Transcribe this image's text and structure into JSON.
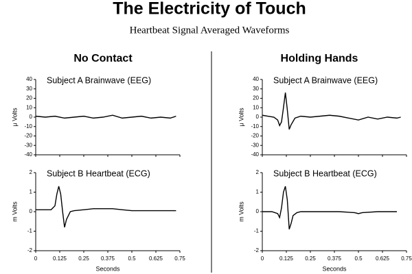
{
  "title": "The Electricity of Touch",
  "subtitle": "Heartbeat Signal Averaged Waveforms",
  "column_titles": [
    "No Contact",
    "Holding Hands"
  ],
  "chart_data": [
    {
      "type": "line",
      "title": "Subject A Brainwave (EEG)",
      "ylabel": "μ Volts",
      "xlim": [
        0,
        0.75
      ],
      "xticks": [
        0,
        0.125,
        0.25,
        0.375,
        0.5,
        0.625,
        0.75
      ],
      "ylim": [
        -40,
        40
      ],
      "yticks": [
        -40,
        -30,
        -20,
        -10,
        0,
        10,
        20,
        30,
        40
      ],
      "x": [
        0,
        0.05,
        0.1,
        0.15,
        0.2,
        0.25,
        0.3,
        0.35,
        0.4,
        0.45,
        0.5,
        0.55,
        0.6,
        0.65,
        0.7,
        0.73
      ],
      "series": [
        {
          "color": "#000000",
          "values": [
            1,
            0,
            1,
            -1,
            0,
            1,
            -1,
            0,
            2,
            -1,
            0,
            1,
            -1,
            0,
            -1,
            1
          ]
        }
      ]
    },
    {
      "type": "line",
      "title": "Subject B  Heartbeat (ECG)",
      "ylabel": "m Volts",
      "xlabel": "Seconds",
      "xlim": [
        0,
        0.75
      ],
      "xticks": [
        0,
        0.125,
        0.25,
        0.375,
        0.5,
        0.625,
        0.75
      ],
      "ylim": [
        -2,
        2
      ],
      "yticks": [
        -2,
        -1,
        0,
        1,
        2
      ],
      "x": [
        0,
        0.05,
        0.08,
        0.1,
        0.11,
        0.12,
        0.13,
        0.14,
        0.15,
        0.16,
        0.18,
        0.2,
        0.25,
        0.3,
        0.35,
        0.4,
        0.45,
        0.5,
        0.6,
        0.7,
        0.73
      ],
      "series": [
        {
          "color": "#000000",
          "values": [
            0.1,
            0.1,
            0.1,
            0.3,
            0.9,
            1.3,
            0.9,
            0,
            -0.8,
            -0.4,
            0,
            0.05,
            0.1,
            0.15,
            0.15,
            0.15,
            0.1,
            0.05,
            0.05,
            0.05,
            0.05
          ]
        }
      ]
    },
    {
      "type": "line",
      "title": "Subject A Brainwave (EEG)",
      "ylabel": "μ Volts",
      "xlim": [
        0,
        0.75
      ],
      "xticks": [
        0,
        0.125,
        0.25,
        0.375,
        0.5,
        0.625,
        0.75
      ],
      "ylim": [
        -40,
        40
      ],
      "yticks": [
        -40,
        -30,
        -20,
        -10,
        0,
        10,
        20,
        30,
        40
      ],
      "x": [
        0,
        0.03,
        0.06,
        0.08,
        0.09,
        0.1,
        0.11,
        0.12,
        0.13,
        0.14,
        0.15,
        0.17,
        0.2,
        0.25,
        0.3,
        0.35,
        0.4,
        0.45,
        0.5,
        0.55,
        0.6,
        0.65,
        0.7,
        0.72
      ],
      "series": [
        {
          "color": "#000000",
          "values": [
            2,
            1,
            0,
            -3,
            -9,
            -5,
            10,
            26,
            8,
            -13,
            -8,
            -1,
            1,
            0,
            1,
            2,
            1,
            -1,
            -3,
            0,
            -2,
            0,
            -1,
            0
          ]
        }
      ]
    },
    {
      "type": "line",
      "title": "Subject B  Heartbeat (ECG)",
      "ylabel": "m Volts",
      "xlabel": "Seconds",
      "xlim": [
        0,
        0.75
      ],
      "xticks": [
        0,
        0.125,
        0.25,
        0.375,
        0.5,
        0.625,
        0.75
      ],
      "ylim": [
        -2,
        2
      ],
      "yticks": [
        -2,
        -1,
        0,
        1,
        2
      ],
      "x": [
        0,
        0.05,
        0.08,
        0.09,
        0.1,
        0.11,
        0.12,
        0.13,
        0.14,
        0.15,
        0.16,
        0.18,
        0.2,
        0.3,
        0.4,
        0.48,
        0.5,
        0.52,
        0.6,
        0.7
      ],
      "series": [
        {
          "color": "#000000",
          "values": [
            0,
            0,
            -0.1,
            -0.3,
            0.2,
            1.0,
            1.3,
            0.6,
            -0.9,
            -0.6,
            -0.2,
            -0.05,
            0,
            0,
            0,
            -0.05,
            -0.1,
            -0.05,
            0,
            0
          ]
        }
      ]
    }
  ]
}
